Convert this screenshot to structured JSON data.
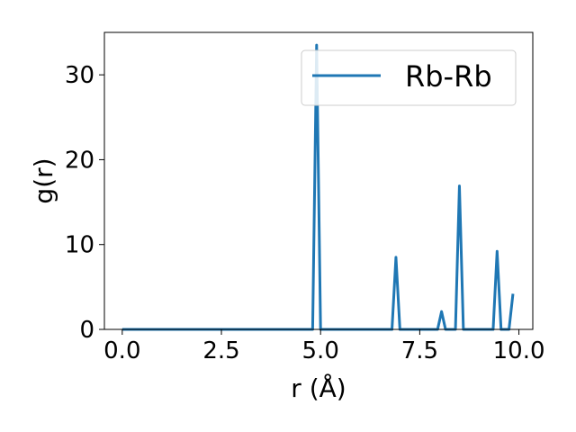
{
  "chart_data": {
    "type": "line",
    "title": "",
    "xlabel": "r (Å)",
    "ylabel": "g(r)",
    "xlim": [
      -0.45,
      10.35
    ],
    "ylim": [
      0,
      35
    ],
    "xticks": [
      0.0,
      2.5,
      5.0,
      7.5,
      10.0
    ],
    "xtick_labels": [
      "0.0",
      "2.5",
      "5.0",
      "7.5",
      "10.0"
    ],
    "yticks": [
      0,
      10,
      20,
      30
    ],
    "ytick_labels": [
      "0",
      "10",
      "20",
      "30"
    ],
    "grid": false,
    "legend": {
      "position": "upper-right"
    },
    "series": [
      {
        "name": "Rb-Rb",
        "color": "#1f77b4",
        "x": [
          0.0,
          4.8,
          4.9,
          5.0,
          6.8,
          6.9,
          7.0,
          7.95,
          8.05,
          8.15,
          8.4,
          8.5,
          8.6,
          9.35,
          9.45,
          9.55,
          9.75,
          9.85
        ],
        "y": [
          0.0,
          0.0,
          33.5,
          0.0,
          0.0,
          8.5,
          0.0,
          0.0,
          2.1,
          0.0,
          0.0,
          16.9,
          0.0,
          0.0,
          9.2,
          0.0,
          0.0,
          4.2
        ]
      }
    ]
  }
}
